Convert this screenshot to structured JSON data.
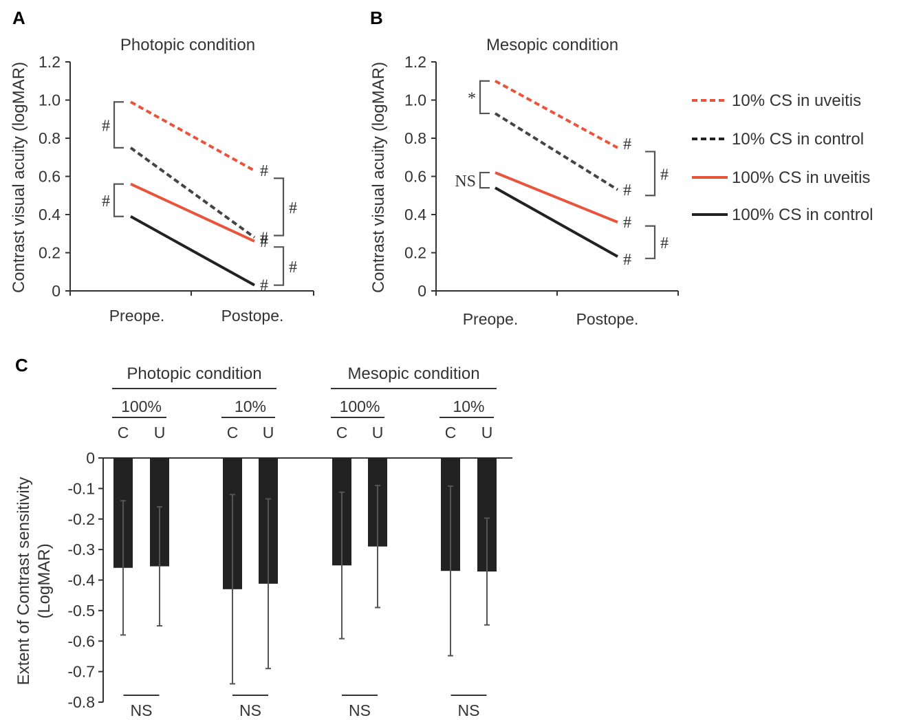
{
  "colors": {
    "uveitis": "#e8553c",
    "control_dashed": "#444444",
    "control": "#222222",
    "bar": "#222222",
    "errorbar": "#555555"
  },
  "panels": {
    "A": {
      "letter": "A"
    },
    "B": {
      "letter": "B"
    },
    "C": {
      "letter": "C"
    }
  },
  "legend": [
    {
      "label": "10% CS in uveitis",
      "style": "dashed",
      "color": "#e8553c"
    },
    {
      "label": "10% CS in control",
      "style": "dashed",
      "color": "#222222"
    },
    {
      "label": "100% CS in uveitis",
      "style": "solid",
      "color": "#e8553c"
    },
    {
      "label": "100% CS in control",
      "style": "solid",
      "color": "#222222"
    }
  ],
  "annotations": {
    "hash": "#",
    "star": "*",
    "ns": "NS"
  },
  "chart_data": [
    {
      "type": "line",
      "panel": "A",
      "title": "Photopic condition",
      "ylabel": "Contrast visual acuity (logMAR)",
      "categories": [
        "Preope.",
        "Postope."
      ],
      "ylim": [
        0,
        1.2
      ],
      "yticks": [
        "0",
        "0.2",
        "0.4",
        "0.6",
        "0.8",
        "1.0",
        "1.2"
      ],
      "series": [
        {
          "name": "10% CS in uveitis",
          "values": [
            0.99,
            0.63
          ],
          "style": "dashed",
          "color": "#e8553c"
        },
        {
          "name": "10% CS in control",
          "values": [
            0.75,
            0.28
          ],
          "style": "dashed",
          "color": "#444444"
        },
        {
          "name": "100% CS in uveitis",
          "values": [
            0.56,
            0.26
          ],
          "style": "solid",
          "color": "#e8553c"
        },
        {
          "name": "100% CS in control",
          "values": [
            0.39,
            0.03
          ],
          "style": "solid",
          "color": "#222222"
        }
      ],
      "left_brackets": [
        {
          "label": "#",
          "from": 0.99,
          "to": 0.75
        },
        {
          "label": "#",
          "from": 0.56,
          "to": 0.39
        }
      ],
      "end_marks": [
        "#",
        "#",
        "#",
        "#"
      ],
      "right_brackets": [
        {
          "label": "#",
          "from": 0.59,
          "to": 0.29
        },
        {
          "label": "#",
          "from": 0.23,
          "to": 0.03
        }
      ]
    },
    {
      "type": "line",
      "panel": "B",
      "title": "Mesopic condition",
      "ylabel": "Contrast visual acuity (logMAR)",
      "categories": [
        "Preope.",
        "Postope."
      ],
      "ylim": [
        0,
        1.2
      ],
      "yticks": [
        "0",
        "0.2",
        "0.4",
        "0.6",
        "0.8",
        "1.0",
        "1.2"
      ],
      "series": [
        {
          "name": "10% CS in uveitis",
          "values": [
            1.1,
            0.75
          ],
          "style": "dashed",
          "color": "#e8553c"
        },
        {
          "name": "10% CS in control",
          "values": [
            0.93,
            0.53
          ],
          "style": "dashed",
          "color": "#444444"
        },
        {
          "name": "100% CS in uveitis",
          "values": [
            0.62,
            0.36
          ],
          "style": "solid",
          "color": "#e8553c"
        },
        {
          "name": "100% CS in control",
          "values": [
            0.54,
            0.18
          ],
          "style": "solid",
          "color": "#222222"
        }
      ],
      "left_brackets": [
        {
          "label": "*",
          "from": 1.1,
          "to": 0.93
        },
        {
          "label": "NS",
          "from": 0.62,
          "to": 0.54
        }
      ],
      "end_marks": [
        "#",
        "#",
        "#",
        "#"
      ],
      "right_brackets": [
        {
          "label": "#",
          "from": 0.73,
          "to": 0.5
        },
        {
          "label": "#",
          "from": 0.34,
          "to": 0.17
        }
      ]
    },
    {
      "type": "bar",
      "panel": "C",
      "ylabel": "Extent of Contrast sensitivity (LogMAR)",
      "ylim": [
        -0.8,
        0
      ],
      "yticks": [
        "0",
        "-0.1",
        "-0.2",
        "-0.3",
        "-0.4",
        "-0.5",
        "-0.6",
        "-0.7",
        "-0.8"
      ],
      "conditions": [
        "Photopic condition",
        "Mesopic condition"
      ],
      "contrasts": [
        "100%",
        "10%",
        "100%",
        "10%"
      ],
      "categories": [
        "C",
        "U",
        "C",
        "U",
        "C",
        "U",
        "C",
        "U"
      ],
      "values": [
        -0.36,
        -0.355,
        -0.43,
        -0.412,
        -0.352,
        -0.29,
        -0.37,
        -0.372
      ],
      "errors": [
        0.22,
        0.195,
        0.31,
        0.278,
        0.24,
        0.2,
        0.278,
        0.175
      ],
      "significance": [
        "NS",
        "NS",
        "NS",
        "NS"
      ]
    }
  ]
}
